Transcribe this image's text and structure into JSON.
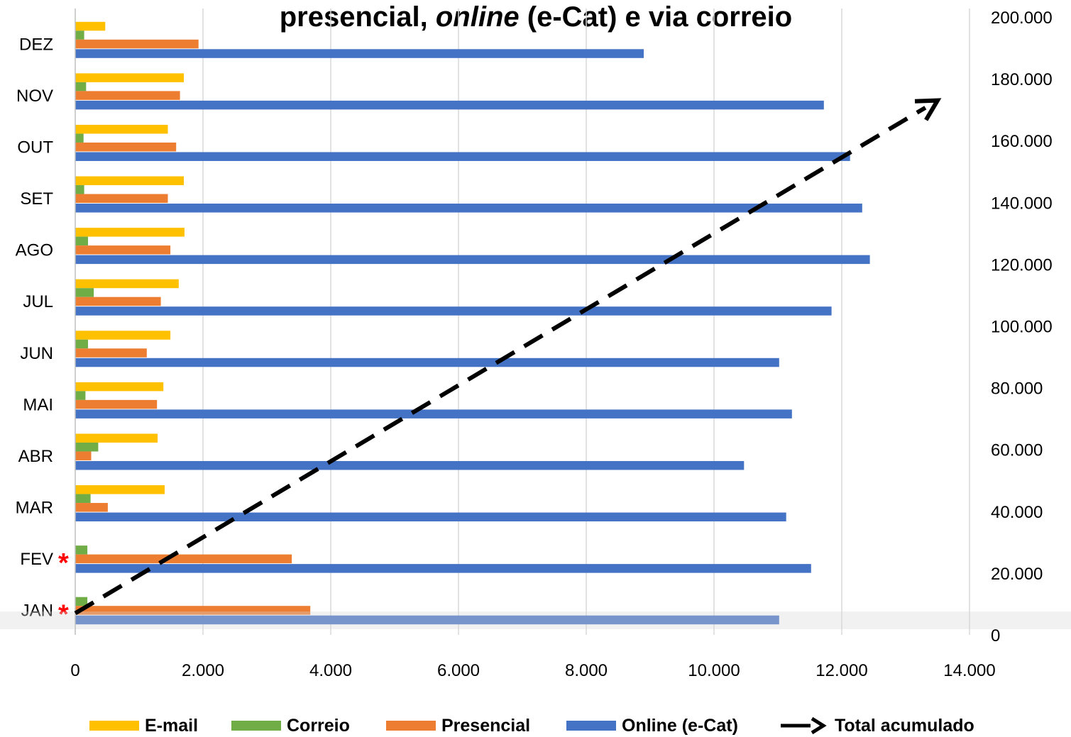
{
  "title_line1_prefix": "presencial, ",
  "title_line1_italic": "online",
  "title_line1_suffix": " (e-Cat) e via correio",
  "chart_data": {
    "type": "bar",
    "orientation": "horizontal",
    "categories": [
      "JAN",
      "FEV",
      "MAR",
      "ABR",
      "MAI",
      "JUN",
      "JUL",
      "AGO",
      "SET",
      "OUT",
      "NOV",
      "DEZ"
    ],
    "category_markers": {
      "JAN": "*",
      "FEV": "*"
    },
    "series": [
      {
        "name": "E-mail",
        "color": "#FFC000",
        "values": [
          0,
          0,
          1400,
          1290,
          1380,
          1490,
          1620,
          1710,
          1700,
          1450,
          1700,
          470
        ]
      },
      {
        "name": "Correio",
        "color": "#70AD47",
        "values": [
          190,
          190,
          240,
          360,
          160,
          200,
          290,
          200,
          140,
          130,
          170,
          140
        ]
      },
      {
        "name": "Presencial",
        "color": "#ED7D31",
        "values": [
          3680,
          3390,
          510,
          250,
          1280,
          1120,
          1340,
          1490,
          1450,
          1580,
          1640,
          1930
        ]
      },
      {
        "name": "Online (e-Cat)",
        "color": "#4472C4",
        "values": [
          11020,
          11520,
          11130,
          10470,
          11220,
          11020,
          11840,
          12440,
          12320,
          12130,
          11720,
          8900
        ]
      }
    ],
    "x_axis": {
      "min": 0,
      "max": 14000,
      "ticks": [
        0,
        2000,
        4000,
        6000,
        8000,
        10000,
        12000,
        14000
      ],
      "tick_labels": [
        "0",
        "2.000",
        "4.000",
        "6.000",
        "8.000",
        "10.000",
        "12.000",
        "14.000"
      ]
    },
    "secondary_axis": {
      "min": 0,
      "max": 200000,
      "ticks": [
        0,
        20000,
        40000,
        60000,
        80000,
        100000,
        120000,
        140000,
        160000,
        180000,
        200000
      ],
      "tick_labels": [
        "0",
        "20.000",
        "40.000",
        "60.000",
        "80.000",
        "100.000",
        "120.000",
        "140.000",
        "160.000",
        "180.000",
        "200.000"
      ]
    },
    "cumulative_line": {
      "name": "Total acumulado",
      "style": "dashed-arrow",
      "color": "#000000",
      "start": [
        1,
        7000
      ],
      "end": [
        13500,
        173000
      ]
    },
    "grid": "vertical",
    "legend": {
      "position": "bottom",
      "entries": [
        "E-mail",
        "Correio",
        "Presencial",
        "Online (e-Cat)",
        "Total acumulado"
      ]
    }
  }
}
